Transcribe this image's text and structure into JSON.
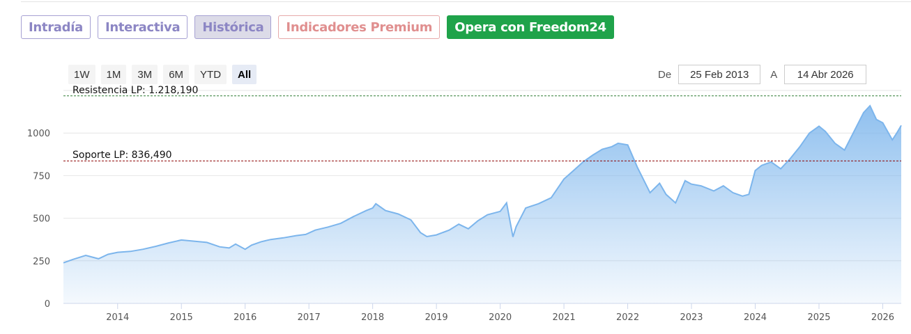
{
  "tabs": [
    {
      "label": "Intradía"
    },
    {
      "label": "Interactiva"
    },
    {
      "label": "Histórica"
    },
    {
      "label": "Indicadores Premium"
    },
    {
      "label": "Opera con Freedom24"
    }
  ],
  "range_buttons": [
    "1W",
    "1M",
    "3M",
    "6M",
    "YTD",
    "All"
  ],
  "active_range": "All",
  "date_range": {
    "from_label": "De",
    "from": "25 Feb 2013",
    "to_label": "A",
    "to": "14 Abr 2026"
  },
  "colors": {
    "line": "#7cb5ec",
    "resistance": "#2e7d32",
    "support": "#8b0000"
  },
  "chart_data": {
    "type": "area",
    "ylim": [
      0,
      1250
    ],
    "y_ticks": [
      0,
      250,
      500,
      750,
      1000
    ],
    "x_ticks": [
      "2014",
      "2015",
      "2016",
      "2017",
      "2018",
      "2019",
      "2020",
      "2021",
      "2022",
      "2023",
      "2024",
      "2025",
      "2026"
    ],
    "x_range": [
      2013.15,
      2026.29
    ],
    "grid": true,
    "annotations": [
      {
        "label": "Resistencia LP: 1.218,190",
        "value": 1218.19
      },
      {
        "label": "Soporte LP: 836,490",
        "value": 836.49
      }
    ],
    "series": [
      {
        "x": [
          2013.15,
          2013.3,
          2013.5,
          2013.7,
          2013.85,
          2014.0,
          2014.2,
          2014.4,
          2014.6,
          2014.8,
          2015.0,
          2015.2,
          2015.4,
          2015.6,
          2015.75,
          2015.85,
          2016.0,
          2016.1,
          2016.25,
          2016.4,
          2016.6,
          2016.8,
          2016.95,
          2017.1,
          2017.3,
          2017.5,
          2017.7,
          2017.9,
          2018.0,
          2018.05,
          2018.2,
          2018.4,
          2018.6,
          2018.75,
          2018.85,
          2019.0,
          2019.2,
          2019.35,
          2019.5,
          2019.65,
          2019.8,
          2020.0,
          2020.1,
          2020.2,
          2020.25,
          2020.4,
          2020.6,
          2020.8,
          2021.0,
          2021.15,
          2021.3,
          2021.45,
          2021.6,
          2021.75,
          2021.85,
          2022.0,
          2022.15,
          2022.35,
          2022.5,
          2022.6,
          2022.75,
          2022.9,
          2023.0,
          2023.15,
          2023.35,
          2023.5,
          2023.65,
          2023.8,
          2023.9,
          2024.0,
          2024.1,
          2024.25,
          2024.4,
          2024.55,
          2024.7,
          2024.85,
          2025.0,
          2025.1,
          2025.25,
          2025.4,
          2025.55,
          2025.7,
          2025.8,
          2025.9,
          2026.0,
          2026.15,
          2026.22,
          2026.29
        ],
        "y": [
          238,
          258,
          282,
          262,
          288,
          300,
          305,
          318,
          335,
          355,
          372,
          365,
          358,
          332,
          325,
          348,
          318,
          342,
          362,
          375,
          385,
          398,
          405,
          430,
          448,
          470,
          510,
          545,
          560,
          585,
          545,
          525,
          490,
          415,
          392,
          402,
          430,
          465,
          438,
          485,
          520,
          540,
          590,
          390,
          450,
          560,
          585,
          620,
          730,
          780,
          830,
          870,
          905,
          920,
          940,
          930,
          800,
          650,
          705,
          640,
          590,
          720,
          700,
          690,
          660,
          690,
          650,
          630,
          640,
          780,
          810,
          830,
          790,
          850,
          920,
          1000,
          1040,
          1010,
          940,
          900,
          1010,
          1120,
          1160,
          1080,
          1060,
          960,
          1000,
          1045
        ]
      }
    ]
  }
}
